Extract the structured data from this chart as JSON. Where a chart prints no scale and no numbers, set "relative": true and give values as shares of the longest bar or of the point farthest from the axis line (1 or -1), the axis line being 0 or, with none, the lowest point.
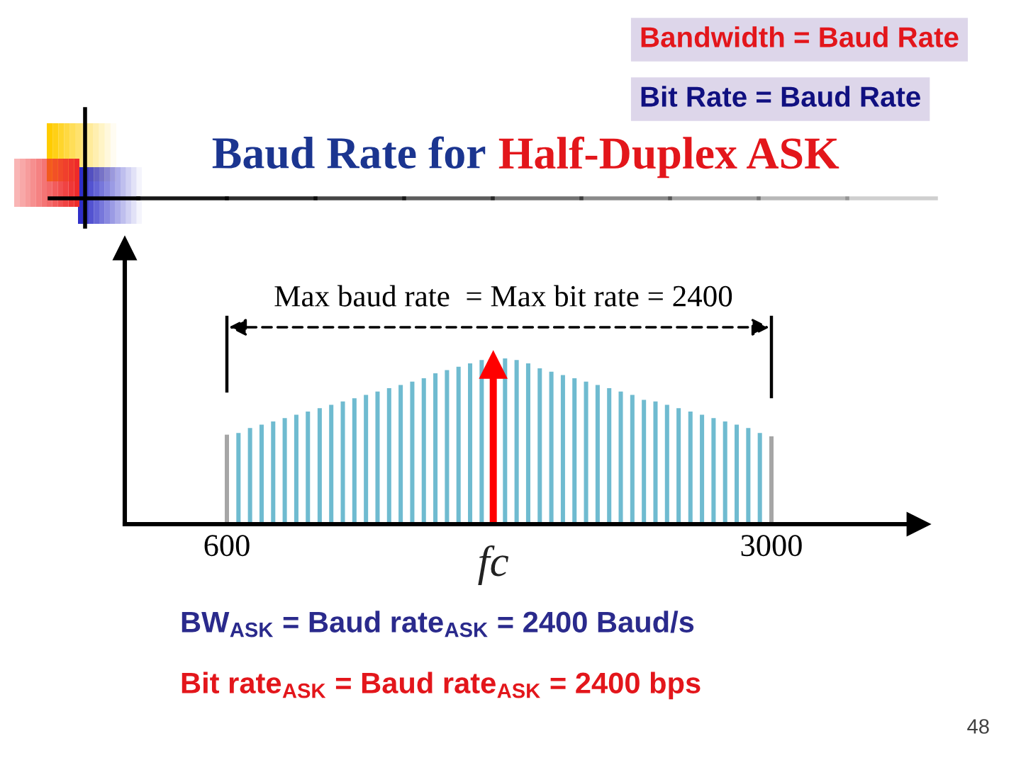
{
  "chart_data": {
    "type": "bar",
    "title": "Baud Rate for Half-Duplex ASK",
    "relative": true,
    "xlim": [
      150,
      3600
    ],
    "xticks": [
      600,
      3000
    ],
    "annotations": [
      "Bandwidth = Baud Rate",
      "Bit Rate = Baud Rate",
      "Max baud rate  = Max bit rate = 2400",
      "BW$_{ASK}$ = Baud rate$_{ASK}$ = 2400 Baud/s",
      "Bit rate$_{ASK}$ = Baud rate$_{ASK}$ = 2400 bps",
      "48"
    ],
    "series": [
      {
        "x": [
          600,
          651,
          702,
          753,
          804,
          855,
          906,
          957,
          1009,
          1060,
          1111,
          1162,
          1213,
          1264,
          1315,
          1366,
          1417,
          1468,
          1519,
          1570,
          1621,
          1672,
          1723,
          1826,
          1877,
          1928,
          1979,
          2030,
          2081,
          2132,
          2183,
          2234,
          2285,
          2336,
          2387,
          2438,
          2489,
          2540,
          2591,
          2643,
          2694,
          2745,
          2796,
          2847,
          2898,
          2949,
          3000
        ],
        "values": [
          0.54,
          0.55,
          0.58,
          0.6,
          0.62,
          0.64,
          0.66,
          0.68,
          0.7,
          0.72,
          0.74,
          0.76,
          0.78,
          0.8,
          0.82,
          0.84,
          0.86,
          0.88,
          0.91,
          0.93,
          0.95,
          0.97,
          0.99,
          1.0,
          0.99,
          0.97,
          0.94,
          0.92,
          0.9,
          0.88,
          0.86,
          0.84,
          0.82,
          0.8,
          0.78,
          0.75,
          0.74,
          0.72,
          0.7,
          0.68,
          0.66,
          0.64,
          0.62,
          0.6,
          0.58,
          0.55,
          0.53
        ],
        "colors": [
          "#a6a6a6",
          "#6fbbd0",
          "#6fbbd0",
          "#6fbbd0",
          "#6fbbd0",
          "#6fbbd0",
          "#6fbbd0",
          "#6fbbd0",
          "#6fbbd0",
          "#6fbbd0",
          "#6fbbd0",
          "#6fbbd0",
          "#6fbbd0",
          "#6fbbd0",
          "#6fbbd0",
          "#6fbbd0",
          "#6fbbd0",
          "#6fbbd0",
          "#6fbbd0",
          "#6fbbd0",
          "#6fbbd0",
          "#6fbbd0",
          "#6fbbd0",
          "#6fbbd0",
          "#6fbbd0",
          "#6fbbd0",
          "#6fbbd0",
          "#6fbbd0",
          "#6fbbd0",
          "#6fbbd0",
          "#6fbbd0",
          "#6fbbd0",
          "#6fbbd0",
          "#6fbbd0",
          "#6fbbd0",
          "#6fbbd0",
          "#6fbbd0",
          "#6fbbd0",
          "#6fbbd0",
          "#6fbbd0",
          "#6fbbd0",
          "#6fbbd0",
          "#6fbbd0",
          "#6fbbd0",
          "#6fbbd0",
          "#6fbbd0",
          "#a6a6a6"
        ]
      },
      {
        "type": "lollipop",
        "name": "fc",
        "color": "#ff0000",
        "marker": "triangle",
        "x": [
          1774
        ],
        "values": [
          0.96
        ]
      }
    ]
  }
}
